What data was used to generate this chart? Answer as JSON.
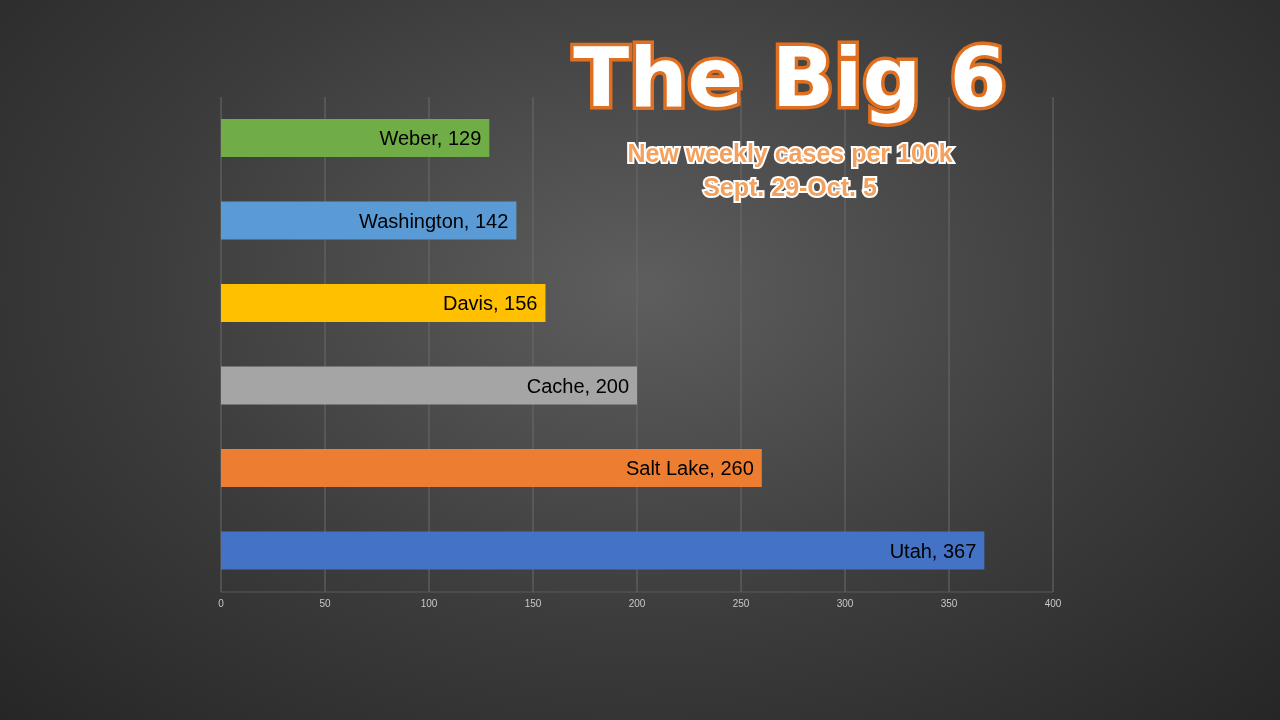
{
  "chart_data": {
    "type": "bar",
    "orientation": "horizontal",
    "title": "The Big 6",
    "subtitle": "New weekly cases per 100k\nSept. 29-Oct. 5",
    "categories": [
      null,
      null,
      null,
      null,
      null,
      null
    ],
    "values": [
      129,
      142,
      156,
      200,
      260,
      367
    ],
    "colors": [
      "#70ad47",
      "#5b9bd5",
      "#ffc000",
      "#a5a5a5",
      "#ed7d31",
      "#4472c4"
    ],
    "value_labels": [
      "Weber, 129",
      "Washington, 142",
      "Davis, 156",
      "Cache, 200",
      "Salt Lake, 260",
      "Utah, 367"
    ],
    "xlim": [
      0,
      400
    ],
    "xticks": [
      0,
      50,
      100,
      150,
      200,
      250,
      300,
      350,
      400
    ],
    "grid": "x",
    "tick_labels": "x"
  }
}
